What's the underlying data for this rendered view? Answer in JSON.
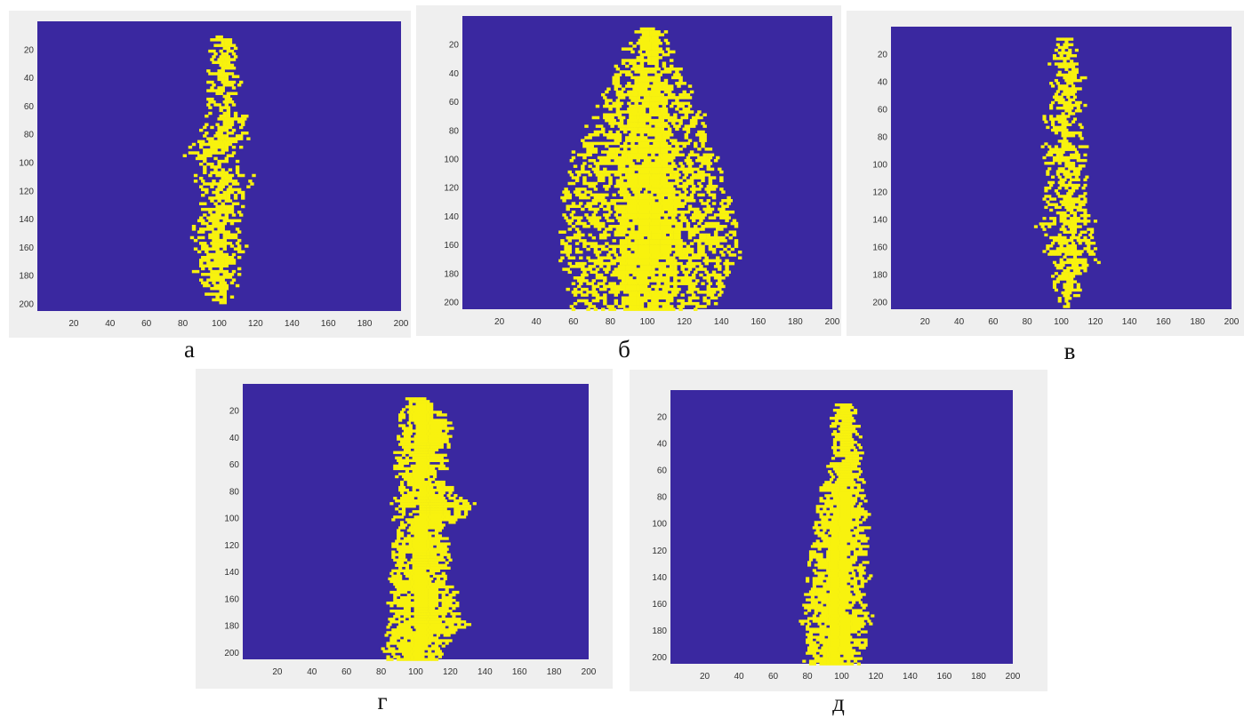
{
  "colors": {
    "background": "#3a28a0",
    "fill": "#f8f20e",
    "frame": "#efefef"
  },
  "chart_data": [
    {
      "type": "heatmap",
      "caption": "а",
      "xlim": [
        0,
        200
      ],
      "ylim": [
        0,
        205
      ],
      "y_reversed": true,
      "xticks": [
        20,
        40,
        60,
        80,
        100,
        120,
        140,
        160,
        180,
        200
      ],
      "yticks": [
        20,
        40,
        60,
        80,
        100,
        120,
        140,
        160,
        180,
        200
      ],
      "grid": false,
      "pattern": {
        "rows": [
          [
            10,
            98,
            104
          ],
          [
            20,
            96,
            108
          ],
          [
            30,
            94,
            108
          ],
          [
            40,
            92,
            110
          ],
          [
            50,
            94,
            110
          ],
          [
            60,
            92,
            112
          ],
          [
            70,
            94,
            114
          ],
          [
            80,
            90,
            114
          ],
          [
            90,
            84,
            112
          ],
          [
            95,
            76,
            104
          ],
          [
            100,
            88,
            112
          ],
          [
            110,
            88,
            116
          ],
          [
            120,
            88,
            116
          ],
          [
            130,
            90,
            112
          ],
          [
            140,
            86,
            114
          ],
          [
            150,
            84,
            112
          ],
          [
            160,
            86,
            112
          ],
          [
            170,
            88,
            112
          ],
          [
            180,
            88,
            110
          ],
          [
            190,
            92,
            108
          ],
          [
            200,
            94,
            104
          ]
        ],
        "density": 0.6,
        "seed": 11
      }
    },
    {
      "type": "heatmap",
      "caption": "б",
      "xlim": [
        0,
        200
      ],
      "ylim": [
        0,
        205
      ],
      "y_reversed": true,
      "xticks": [
        20,
        40,
        60,
        80,
        100,
        120,
        140,
        160,
        180,
        200
      ],
      "yticks": [
        20,
        40,
        60,
        80,
        100,
        120,
        140,
        160,
        180,
        200
      ],
      "grid": false,
      "pattern": {
        "rows": [
          [
            8,
            96,
            106
          ],
          [
            20,
            90,
            112
          ],
          [
            30,
            86,
            114
          ],
          [
            40,
            82,
            118
          ],
          [
            50,
            78,
            122
          ],
          [
            60,
            74,
            126
          ],
          [
            70,
            70,
            130
          ],
          [
            80,
            68,
            132
          ],
          [
            90,
            64,
            134
          ],
          [
            100,
            60,
            136
          ],
          [
            110,
            58,
            140
          ],
          [
            120,
            56,
            142
          ],
          [
            130,
            56,
            144
          ],
          [
            140,
            56,
            146
          ],
          [
            150,
            54,
            148
          ],
          [
            160,
            54,
            150
          ],
          [
            170,
            54,
            148
          ],
          [
            180,
            56,
            144
          ],
          [
            190,
            58,
            140
          ],
          [
            205,
            60,
            136
          ]
        ],
        "density": 0.7,
        "seed": 23
      }
    },
    {
      "type": "heatmap",
      "caption": "в",
      "xlim": [
        0,
        200
      ],
      "ylim": [
        0,
        205
      ],
      "y_reversed": true,
      "xticks": [
        20,
        40,
        60,
        80,
        100,
        120,
        140,
        160,
        180,
        200
      ],
      "yticks": [
        20,
        40,
        60,
        80,
        100,
        120,
        140,
        160,
        180,
        200
      ],
      "grid": false,
      "pattern": {
        "rows": [
          [
            8,
            99,
            104
          ],
          [
            20,
            96,
            108
          ],
          [
            30,
            94,
            110
          ],
          [
            40,
            94,
            112
          ],
          [
            60,
            92,
            112
          ],
          [
            80,
            90,
            112
          ],
          [
            100,
            90,
            114
          ],
          [
            120,
            90,
            116
          ],
          [
            140,
            88,
            118
          ],
          [
            150,
            86,
            118
          ],
          [
            160,
            90,
            118
          ],
          [
            170,
            94,
            120
          ],
          [
            180,
            94,
            112
          ],
          [
            190,
            96,
            110
          ],
          [
            203,
            98,
            106
          ]
        ],
        "density": 0.6,
        "seed": 37
      }
    },
    {
      "type": "heatmap",
      "caption": "г",
      "xlim": [
        0,
        200
      ],
      "ylim": [
        0,
        205
      ],
      "y_reversed": true,
      "xticks": [
        20,
        40,
        60,
        80,
        100,
        120,
        140,
        160,
        180,
        200
      ],
      "yticks": [
        20,
        40,
        60,
        80,
        100,
        120,
        140,
        160,
        180,
        200
      ],
      "grid": false,
      "pattern": {
        "rows": [
          [
            10,
            94,
            104
          ],
          [
            20,
            92,
            112
          ],
          [
            30,
            92,
            120
          ],
          [
            40,
            92,
            120
          ],
          [
            50,
            90,
            114
          ],
          [
            60,
            90,
            116
          ],
          [
            70,
            90,
            112
          ],
          [
            80,
            90,
            120
          ],
          [
            90,
            88,
            134
          ],
          [
            100,
            88,
            126
          ],
          [
            110,
            88,
            114
          ],
          [
            120,
            88,
            118
          ],
          [
            130,
            88,
            120
          ],
          [
            140,
            86,
            116
          ],
          [
            150,
            86,
            118
          ],
          [
            160,
            86,
            126
          ],
          [
            170,
            84,
            122
          ],
          [
            180,
            84,
            130
          ],
          [
            190,
            84,
            118
          ],
          [
            205,
            82,
            112
          ]
        ],
        "density": 0.94,
        "seed": 41
      }
    },
    {
      "type": "heatmap",
      "caption": "д",
      "xlim": [
        0,
        200
      ],
      "ylim": [
        0,
        205
      ],
      "y_reversed": true,
      "xticks": [
        20,
        40,
        60,
        80,
        100,
        120,
        140,
        160,
        180,
        200
      ],
      "yticks": [
        20,
        40,
        60,
        80,
        100,
        120,
        140,
        160,
        180,
        200
      ],
      "grid": false,
      "pattern": {
        "rows": [
          [
            10,
            98,
            106
          ],
          [
            20,
            96,
            108
          ],
          [
            40,
            94,
            110
          ],
          [
            60,
            92,
            110
          ],
          [
            80,
            88,
            112
          ],
          [
            100,
            86,
            114
          ],
          [
            120,
            84,
            112
          ],
          [
            130,
            80,
            112
          ],
          [
            140,
            82,
            114
          ],
          [
            160,
            80,
            112
          ],
          [
            170,
            78,
            116
          ],
          [
            180,
            78,
            114
          ],
          [
            190,
            80,
            112
          ],
          [
            205,
            80,
            108
          ]
        ],
        "density": 0.9,
        "seed": 53
      }
    }
  ]
}
